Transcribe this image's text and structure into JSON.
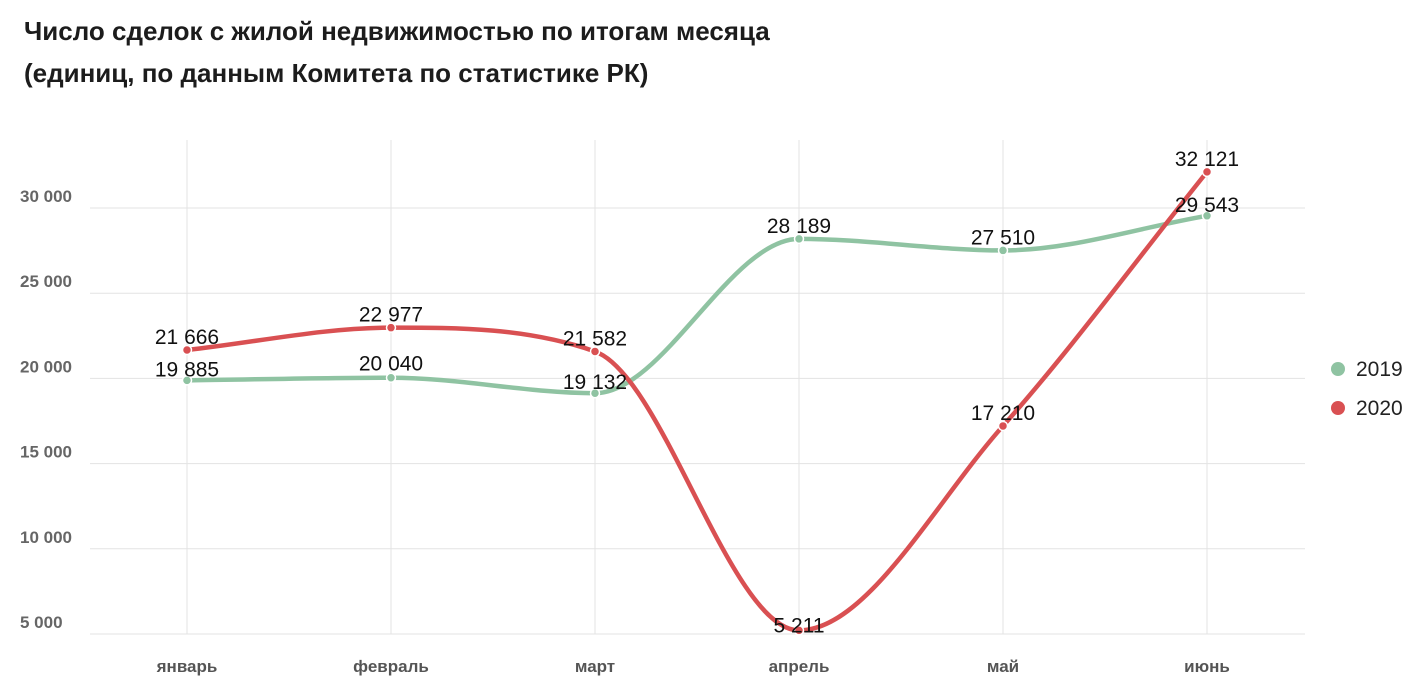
{
  "title": {
    "line1": "Число сделок с жилой недвижимостью по итогам месяца",
    "line2": "(единиц, по данным Комитета по статистике РК)"
  },
  "chart_data": {
    "type": "line",
    "title": "Число сделок с жилой недвижимостью по итогам месяца (единиц, по данным Комитета по статистике РК)",
    "categories": [
      "январь",
      "февраль",
      "март",
      "апрель",
      "май",
      "июнь"
    ],
    "series": [
      {
        "name": "2019",
        "color": "#8fc3a2",
        "values": [
          19885,
          20040,
          19132,
          28189,
          27510,
          29543
        ],
        "labels": [
          "19 885",
          "20 040",
          "19 132",
          "28 189",
          "27 510",
          "29 543"
        ]
      },
      {
        "name": "2020",
        "color": "#d95052",
        "values": [
          21666,
          22977,
          21582,
          5211,
          17210,
          32121
        ],
        "labels": [
          "21 666",
          "22 977",
          "21 582",
          "5 211",
          "17 210",
          "32 121"
        ]
      }
    ],
    "y_ticks": [
      5000,
      10000,
      15000,
      20000,
      25000,
      30000
    ],
    "y_tick_labels": [
      "5 000",
      "10 000",
      "15 000",
      "20 000",
      "25 000",
      "30 000"
    ],
    "ylim": [
      4900,
      33000
    ],
    "grid": true,
    "legend_position": "right",
    "smooth": true
  }
}
